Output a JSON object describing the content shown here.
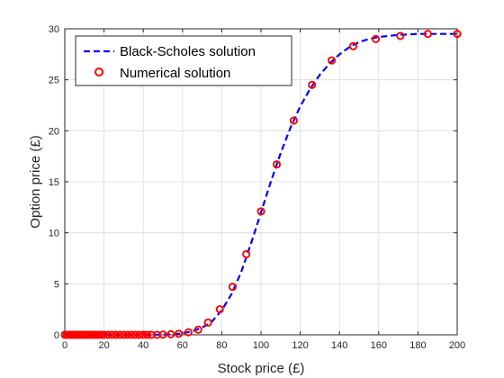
{
  "chart_data": {
    "type": "line",
    "xlabel": "Stock price (£)",
    "ylabel": "Option price (£)",
    "xlim": [
      0,
      200
    ],
    "ylim": [
      0,
      30
    ],
    "xticks": [
      0,
      20,
      40,
      60,
      80,
      100,
      120,
      140,
      160,
      180,
      200
    ],
    "yticks": [
      0,
      5,
      10,
      15,
      20,
      25,
      30
    ],
    "xtick_labels": [
      "0",
      "20",
      "40",
      "60",
      "80",
      "100",
      "120",
      "140",
      "160",
      "180",
      "200"
    ],
    "ytick_labels": [
      "0",
      "5",
      "10",
      "15",
      "20",
      "25",
      "30"
    ],
    "grid": true,
    "legend_position": "top-left",
    "series": [
      {
        "name": "Black-Scholes solution",
        "style": "dashed-line",
        "color": "#0000ff",
        "x": [
          0,
          10,
          20,
          30,
          40,
          50,
          55,
          60,
          65,
          70,
          75,
          80,
          85,
          90,
          95,
          100,
          105,
          110,
          115,
          120,
          125,
          130,
          135,
          140,
          145,
          150,
          155,
          160,
          170,
          180,
          190,
          200
        ],
        "y": [
          0,
          0,
          0,
          0,
          0,
          0.02,
          0.05,
          0.15,
          0.35,
          0.7,
          1.3,
          2.4,
          4.0,
          6.2,
          9.0,
          12.0,
          15.0,
          17.8,
          20.3,
          22.4,
          24.1,
          25.5,
          26.6,
          27.5,
          28.2,
          28.7,
          29.0,
          29.2,
          29.4,
          29.5,
          29.5,
          29.5
        ]
      },
      {
        "name": "Numerical solution",
        "style": "circle-markers",
        "color": "#ff0000",
        "x": [
          0,
          1,
          2,
          3,
          4,
          5,
          6,
          7,
          8,
          9,
          10,
          11,
          12,
          13,
          14,
          15,
          16,
          17,
          18,
          19,
          20,
          22,
          24,
          26,
          28,
          30,
          32,
          34,
          36,
          38,
          40,
          42,
          44,
          47,
          50,
          54,
          58,
          63,
          68,
          73,
          79,
          85.5,
          92.5,
          100,
          108,
          116.7,
          126,
          136,
          147,
          158.5,
          171,
          185,
          200
        ],
        "y": [
          0,
          0,
          0,
          0,
          0,
          0,
          0,
          0,
          0,
          0,
          0,
          0,
          0,
          0,
          0,
          0,
          0,
          0,
          0,
          0,
          0,
          0,
          0,
          0,
          0,
          0,
          0,
          0,
          0,
          0,
          0,
          0,
          0,
          0,
          0.02,
          0.05,
          0.1,
          0.25,
          0.5,
          1.2,
          2.5,
          4.7,
          7.9,
          12.1,
          16.7,
          21.0,
          24.5,
          26.9,
          28.3,
          29.0,
          29.3,
          29.5,
          29.5
        ]
      }
    ]
  }
}
